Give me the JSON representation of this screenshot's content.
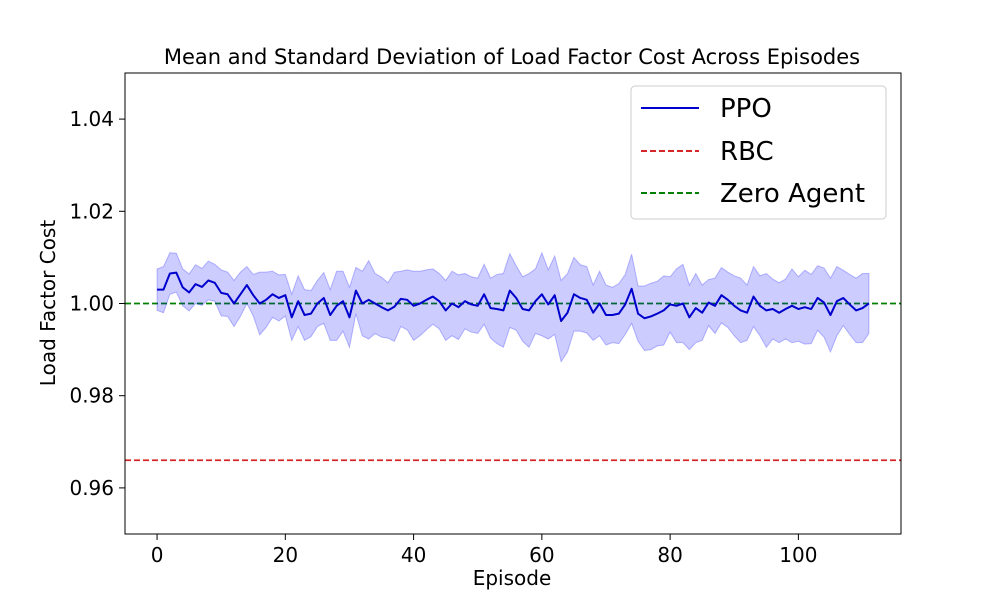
{
  "chart_data": {
    "type": "line",
    "title": "Mean and Standard Deviation of Load Factor Cost Across Episodes",
    "xlabel": "Episode",
    "ylabel": "Load Factor Cost",
    "xlim": [
      -5,
      116
    ],
    "ylim": [
      0.95,
      1.05
    ],
    "x_ticks": [
      0,
      20,
      40,
      60,
      80,
      100
    ],
    "x_tick_labels": [
      "0",
      "20",
      "40",
      "60",
      "80",
      "100"
    ],
    "y_ticks": [
      0.96,
      0.98,
      1.0,
      1.02,
      1.04
    ],
    "y_tick_labels": [
      "0.96",
      "0.98",
      "1.00",
      "1.02",
      "1.04"
    ],
    "grid": false,
    "legend_placement": "top-right",
    "x": [
      0,
      1,
      2,
      3,
      4,
      5,
      6,
      7,
      8,
      9,
      10,
      11,
      12,
      13,
      14,
      15,
      16,
      17,
      18,
      19,
      20,
      21,
      22,
      23,
      24,
      25,
      26,
      27,
      28,
      29,
      30,
      31,
      32,
      33,
      34,
      35,
      36,
      37,
      38,
      39,
      40,
      41,
      42,
      43,
      44,
      45,
      46,
      47,
      48,
      49,
      50,
      51,
      52,
      53,
      54,
      55,
      56,
      57,
      58,
      59,
      60,
      61,
      62,
      63,
      64,
      65,
      66,
      67,
      68,
      69,
      70,
      71,
      72,
      73,
      74,
      75,
      76,
      77,
      78,
      79,
      80,
      81,
      82,
      83,
      84,
      85,
      86,
      87,
      88,
      89,
      90,
      91,
      92,
      93,
      94,
      95,
      96,
      97,
      98,
      99,
      100,
      101,
      102,
      103,
      104,
      105,
      106,
      107,
      108,
      109,
      110,
      111
    ],
    "series": [
      {
        "name": "PPO",
        "style": "solid",
        "color": "#0000cc",
        "band_color": "#0000ff",
        "mean": [
          1.003,
          1.003,
          1.0065,
          1.0067,
          1.0035,
          1.0024,
          1.0042,
          1.0036,
          1.005,
          1.0045,
          1.0023,
          1.002,
          1.0,
          1.002,
          1.004,
          1.0018,
          1.0,
          1.0008,
          1.002,
          1.0012,
          1.0018,
          0.997,
          1.0005,
          0.9975,
          0.9978,
          1.0,
          1.0012,
          0.9975,
          0.9995,
          1.0005,
          0.997,
          1.0028,
          1.0,
          1.0008,
          1.0,
          0.9992,
          0.9985,
          0.9993,
          1.001,
          1.0008,
          0.9995,
          1.0,
          1.0008,
          1.0015,
          1.0005,
          0.9985,
          1.0,
          0.9992,
          1.0005,
          0.9998,
          0.9995,
          1.002,
          0.999,
          0.9988,
          0.9985,
          1.0028,
          1.0012,
          0.9988,
          0.9985,
          1.0005,
          1.002,
          0.9998,
          1.0018,
          0.9962,
          0.998,
          1.002,
          1.0012,
          1.0008,
          0.998,
          1.0,
          0.9975,
          0.9975,
          0.9978,
          0.9998,
          1.0032,
          0.9978,
          0.9968,
          0.9972,
          0.9978,
          0.9985,
          0.9998,
          0.9995,
          1.0,
          0.997,
          0.999,
          0.998,
          1.0002,
          0.9995,
          1.0018,
          1.0008,
          0.9995,
          0.9985,
          0.998,
          1.0015,
          0.9995,
          0.9985,
          0.9988,
          0.998,
          0.9988,
          0.9995,
          0.9988,
          0.9992,
          0.9988,
          1.0012,
          1.0002,
          0.9975,
          1.0005,
          1.0012,
          0.9998,
          0.9985,
          0.999,
          1.0
        ],
        "std": [
          0.0045,
          0.005,
          0.0045,
          0.0042,
          0.004,
          0.004,
          0.0042,
          0.004,
          0.0042,
          0.004,
          0.005,
          0.0048,
          0.005,
          0.0048,
          0.004,
          0.0045,
          0.0068,
          0.006,
          0.005,
          0.005,
          0.0045,
          0.005,
          0.0055,
          0.0055,
          0.005,
          0.005,
          0.0055,
          0.0055,
          0.0075,
          0.0065,
          0.0065,
          0.005,
          0.007,
          0.0085,
          0.0065,
          0.0065,
          0.006,
          0.0075,
          0.006,
          0.0065,
          0.0075,
          0.007,
          0.0065,
          0.006,
          0.006,
          0.0065,
          0.007,
          0.007,
          0.006,
          0.006,
          0.006,
          0.0065,
          0.0065,
          0.0075,
          0.008,
          0.008,
          0.007,
          0.007,
          0.008,
          0.007,
          0.009,
          0.0075,
          0.0085,
          0.0088,
          0.0085,
          0.008,
          0.0072,
          0.0072,
          0.006,
          0.007,
          0.0065,
          0.006,
          0.0065,
          0.0065,
          0.0075,
          0.006,
          0.007,
          0.0072,
          0.007,
          0.0075,
          0.006,
          0.008,
          0.0085,
          0.007,
          0.0075,
          0.006,
          0.005,
          0.006,
          0.006,
          0.006,
          0.0065,
          0.007,
          0.006,
          0.0065,
          0.0065,
          0.008,
          0.0065,
          0.0065,
          0.0065,
          0.008,
          0.007,
          0.008,
          0.0075,
          0.007,
          0.0075,
          0.008,
          0.0075,
          0.006,
          0.0065,
          0.007,
          0.0075,
          0.0065
        ]
      },
      {
        "name": "RBC",
        "style": "dashed",
        "color": "#d62728",
        "value": 0.966
      },
      {
        "name": "Zero Agent",
        "style": "dashed",
        "color": "#008000",
        "value": 1.0
      }
    ]
  }
}
